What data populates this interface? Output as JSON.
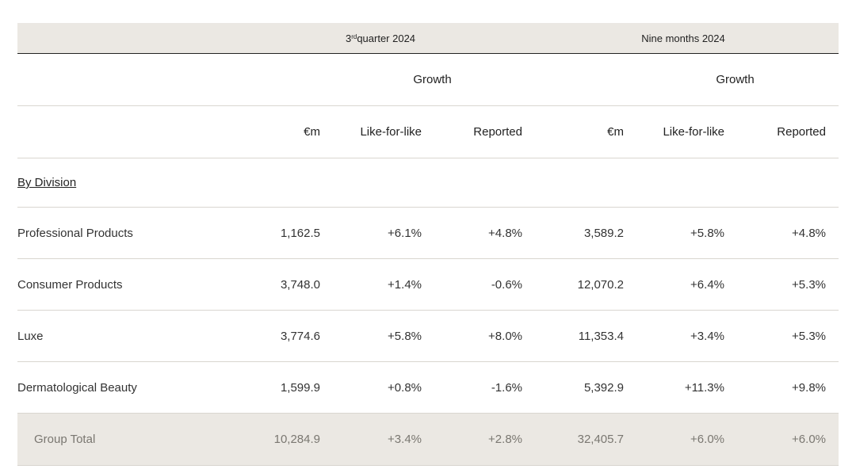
{
  "header": {
    "q3_prefix": "3",
    "q3_sup": "rd",
    "q3_suffix": " quarter 2024",
    "nine_months": "Nine months 2024"
  },
  "growth_label_1": "Growth",
  "growth_label_2": "Growth",
  "columns": [
    "€m",
    "Like-for-like",
    "Reported",
    "€m",
    "Like-for-like",
    "Reported"
  ],
  "section_title": "By Division",
  "rows": [
    {
      "label": "Professional Products",
      "values": [
        "1,162.5",
        "+6.1%",
        "+4.8%",
        "3,589.2",
        "+5.8%",
        "+4.8%"
      ]
    },
    {
      "label": "Consumer Products",
      "values": [
        "3,748.0",
        "+1.4%",
        "-0.6%",
        "12,070.2",
        "+6.4%",
        "+5.3%"
      ]
    },
    {
      "label": "Luxe",
      "values": [
        "3,774.6",
        "+5.8%",
        "+8.0%",
        "11,353.4",
        "+3.4%",
        "+5.3%"
      ]
    },
    {
      "label": "Dermatological Beauty",
      "values": [
        "1,599.9",
        "+0.8%",
        "-1.6%",
        "5,392.9",
        "+11.3%",
        "+9.8%"
      ]
    }
  ],
  "total": {
    "label": "Group Total",
    "values": [
      "10,284.9",
      "+3.4%",
      "+2.8%",
      "32,405.7",
      "+6.0%",
      "+6.0%"
    ]
  }
}
